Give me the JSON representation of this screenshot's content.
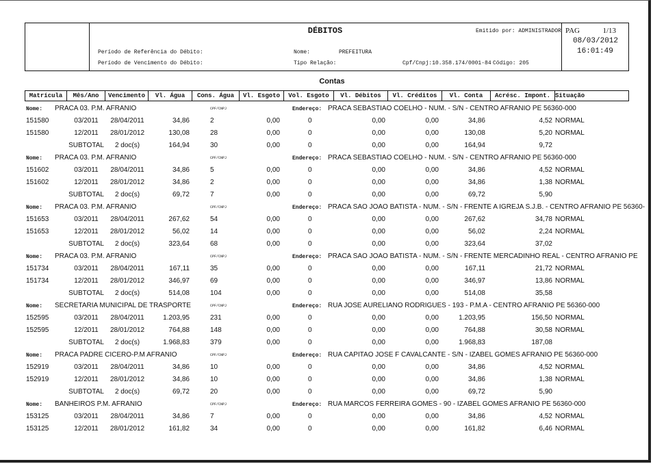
{
  "header": {
    "title": "DÉBITOS",
    "emitted_by": "Emitido por: ADMINISTRADOR",
    "page_label": "PAG",
    "page": "1/13",
    "date": "08/03/2012",
    "time": "16:01:49",
    "ref_period_label": "Período de Referência do Débito:",
    "due_period_label": "Período de Vencimento do Débito:",
    "name_label": "Nome:",
    "name": "PREFEITURA",
    "relation_label": "Tipo Relação:",
    "cpf": "Cpf/Cnpj:10.358.174/0001-84",
    "code": "Código: 205"
  },
  "section_title": "Contas",
  "columns": [
    "Matrícula",
    "Mês/Ano",
    "Vencimento",
    "Vl. Água",
    "Cons. Água",
    "Vl. Esgoto",
    "Vol. Esgoto",
    "Vl. Débitos",
    "Vl. Créditos",
    "Vl. Conta",
    "Acrésc. Impont.",
    "Situação"
  ],
  "groups": [
    {
      "name_label": "Nome:",
      "name": "PRACA 03. P.M. AFRANIO",
      "cpf_label": "CPF/CNPJ",
      "address_label": "Endereço:",
      "address": "PRACA SEBASTIAO COELHO - NUM. - S/N - CENTRO AFRANIO PE 56360-000",
      "rows": [
        [
          "151580",
          "03/2011",
          "28/04/2011",
          "34,86",
          "2",
          "0,00",
          "0",
          "0,00",
          "0,00",
          "34,86",
          "4,52",
          "NORMAL"
        ],
        [
          "151580",
          "12/2011",
          "28/01/2012",
          "130,08",
          "28",
          "0,00",
          "0",
          "0,00",
          "0,00",
          "130,08",
          "5,20",
          "NORMAL"
        ]
      ],
      "subtotal": [
        "SUBTOTAL",
        "2 doc(s)",
        "164,94",
        "30",
        "0,00",
        "0",
        "0,00",
        "0,00",
        "164,94",
        "9,72"
      ]
    },
    {
      "name_label": "Nome:",
      "name": "PRACA 03. P.M. AFRANIO",
      "cpf_label": "CPF/CNPJ",
      "address_label": "Endereço:",
      "address": "PRACA SEBASTIAO COELHO - NUM. - S/N - CENTRO AFRANIO PE 56360-000",
      "rows": [
        [
          "151602",
          "03/2011",
          "28/04/2011",
          "34,86",
          "5",
          "0,00",
          "0",
          "0,00",
          "0,00",
          "34,86",
          "4,52",
          "NORMAL"
        ],
        [
          "151602",
          "12/2011",
          "28/01/2012",
          "34,86",
          "2",
          "0,00",
          "0",
          "0,00",
          "0,00",
          "34,86",
          "1,38",
          "NORMAL"
        ]
      ],
      "subtotal": [
        "SUBTOTAL",
        "2 doc(s)",
        "69,72",
        "7",
        "0,00",
        "0",
        "0,00",
        "0,00",
        "69,72",
        "5,90"
      ]
    },
    {
      "name_label": "Nome:",
      "name": "PRACA 03. P.M. AFRANIO",
      "cpf_label": "CPF/CNPJ",
      "address_label": "Endereço:",
      "address": "PRACA SAO JOAO BATISTA - NUM. - S/N - FRENTE A IGREJA S.J.B. - CENTRO AFRANIO PE 56360-",
      "rows": [
        [
          "151653",
          "03/2011",
          "28/04/2011",
          "267,62",
          "54",
          "0,00",
          "0",
          "0,00",
          "0,00",
          "267,62",
          "34,78",
          "NORMAL"
        ],
        [
          "151653",
          "12/2011",
          "28/01/2012",
          "56,02",
          "14",
          "0,00",
          "0",
          "0,00",
          "0,00",
          "56,02",
          "2,24",
          "NORMAL"
        ]
      ],
      "subtotal": [
        "SUBTOTAL",
        "2 doc(s)",
        "323,64",
        "68",
        "0,00",
        "0",
        "0,00",
        "0,00",
        "323,64",
        "37,02"
      ]
    },
    {
      "name_label": "Nome:",
      "name": "PRACA 03. P.M. AFRANIO",
      "cpf_label": "CPF/CNPJ",
      "address_label": "Endereço:",
      "address": "PRACA SAO JOAO BATISTA - NUM. - S/N - FRENTE MERCADINHO REAL - CENTRO AFRANIO PE",
      "rows": [
        [
          "151734",
          "03/2011",
          "28/04/2011",
          "167,11",
          "35",
          "0,00",
          "0",
          "0,00",
          "0,00",
          "167,11",
          "21,72",
          "NORMAL"
        ],
        [
          "151734",
          "12/2011",
          "28/01/2012",
          "346,97",
          "69",
          "0,00",
          "0",
          "0,00",
          "0,00",
          "346,97",
          "13,86",
          "NORMAL"
        ]
      ],
      "subtotal": [
        "SUBTOTAL",
        "2 doc(s)",
        "514,08",
        "104",
        "0,00",
        "0",
        "0,00",
        "0,00",
        "514,08",
        "35,58"
      ]
    },
    {
      "name_label": "Nome:",
      "name": "SECRETARIA MUNICIPAL DE TRASPORTE",
      "cpf_label": "CPF/CNPJ",
      "address_label": "Endereço:",
      "address": "RUA JOSE AURELIANO RODRIGUES - 193 - P.M.A - CENTRO AFRANIO PE 56360-000",
      "rows": [
        [
          "152595",
          "03/2011",
          "28/04/2011",
          "1.203,95",
          "231",
          "0,00",
          "0",
          "0,00",
          "0,00",
          "1.203,95",
          "156,50",
          "NORMAL"
        ],
        [
          "152595",
          "12/2011",
          "28/01/2012",
          "764,88",
          "148",
          "0,00",
          "0",
          "0,00",
          "0,00",
          "764,88",
          "30,58",
          "NORMAL"
        ]
      ],
      "subtotal": [
        "SUBTOTAL",
        "2 doc(s)",
        "1.968,83",
        "379",
        "0,00",
        "0",
        "0,00",
        "0,00",
        "1.968,83",
        "187,08"
      ]
    },
    {
      "name_label": "Nome:",
      "name": "PRACA PADRE CICERO-P.M AFRANIO",
      "cpf_label": "CPF/CNPJ",
      "address_label": "Endereço:",
      "address": "RUA CAPITAO JOSE F CAVALCANTE - S/N - IZABEL GOMES AFRANIO PE 56360-000",
      "rows": [
        [
          "152919",
          "03/2011",
          "28/04/2011",
          "34,86",
          "10",
          "0,00",
          "0",
          "0,00",
          "0,00",
          "34,86",
          "4,52",
          "NORMAL"
        ],
        [
          "152919",
          "12/2011",
          "28/01/2012",
          "34,86",
          "10",
          "0,00",
          "0",
          "0,00",
          "0,00",
          "34,86",
          "1,38",
          "NORMAL"
        ]
      ],
      "subtotal": [
        "SUBTOTAL",
        "2 doc(s)",
        "69,72",
        "20",
        "0,00",
        "0",
        "0,00",
        "0,00",
        "69,72",
        "5,90"
      ]
    },
    {
      "name_label": "Nome:",
      "name": "BANHEIROS P.M. AFRANIO",
      "cpf_label": "CPF/CNPJ",
      "address_label": "Endereço:",
      "address": "RUA MARCOS FERREIRA GOMES - 90 - IZABEL GOMES AFRANIO PE 56360-000",
      "rows": [
        [
          "153125",
          "03/2011",
          "28/04/2011",
          "34,86",
          "7",
          "0,00",
          "0",
          "0,00",
          "0,00",
          "34,86",
          "4,52",
          "NORMAL"
        ],
        [
          "153125",
          "12/2011",
          "28/01/2012",
          "161,82",
          "34",
          "0,00",
          "0",
          "0,00",
          "0,00",
          "161,82",
          "6,46",
          "NORMAL"
        ]
      ]
    }
  ]
}
